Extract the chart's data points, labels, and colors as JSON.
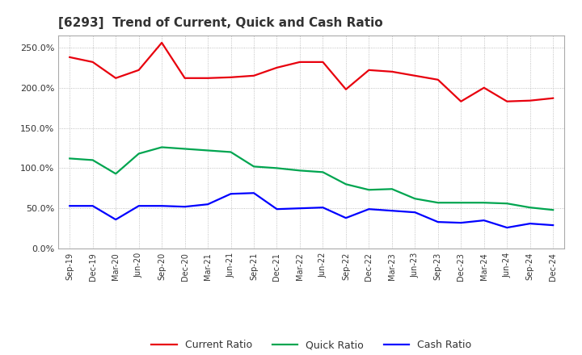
{
  "title": "[6293]  Trend of Current, Quick and Cash Ratio",
  "x_labels": [
    "Sep-19",
    "Dec-19",
    "Mar-20",
    "Jun-20",
    "Sep-20",
    "Dec-20",
    "Mar-21",
    "Jun-21",
    "Sep-21",
    "Dec-21",
    "Mar-22",
    "Jun-22",
    "Sep-22",
    "Dec-22",
    "Mar-23",
    "Jun-23",
    "Sep-23",
    "Dec-23",
    "Mar-24",
    "Jun-24",
    "Sep-24",
    "Dec-24"
  ],
  "current_ratio": [
    238,
    232,
    212,
    222,
    256,
    212,
    212,
    213,
    215,
    225,
    232,
    232,
    198,
    222,
    220,
    215,
    210,
    183,
    200,
    183,
    184,
    187
  ],
  "quick_ratio": [
    112,
    110,
    93,
    118,
    126,
    124,
    122,
    120,
    102,
    100,
    97,
    95,
    80,
    73,
    74,
    62,
    57,
    57,
    57,
    56,
    51,
    48
  ],
  "cash_ratio": [
    53,
    53,
    36,
    53,
    53,
    52,
    55,
    68,
    69,
    49,
    50,
    51,
    38,
    49,
    47,
    45,
    33,
    32,
    35,
    26,
    31,
    29
  ],
  "current_color": "#e8000d",
  "quick_color": "#00a550",
  "cash_color": "#0000ff",
  "ylim": [
    0,
    265
  ],
  "yticks": [
    0,
    50,
    100,
    150,
    200,
    250
  ],
  "background_color": "#ffffff",
  "plot_bg_color": "#ffffff",
  "grid_color": "#b0b0b0",
  "title_fontsize": 11,
  "line_width": 1.6
}
